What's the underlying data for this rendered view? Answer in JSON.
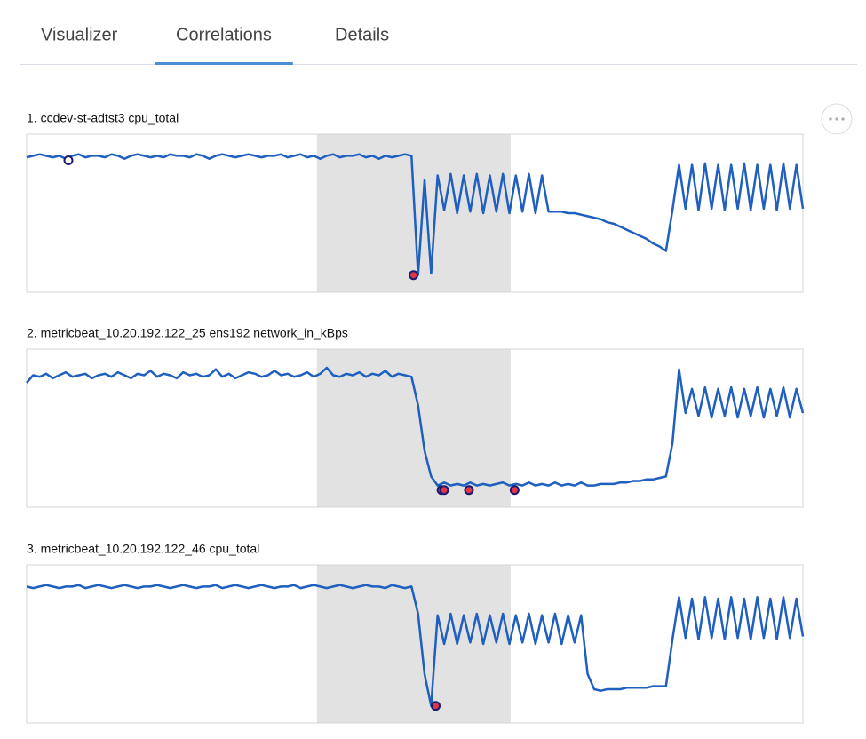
{
  "tabs": [
    "Visualizer",
    "Correlations",
    "Details"
  ],
  "active_tab": 1,
  "chart_data": [
    {
      "type": "line",
      "title": "1. ccdev-st-adtst3 cpu_total",
      "color": "#1e5fbf",
      "highlight_color": "#e2e2e2",
      "xlim": [
        0,
        119
      ],
      "ylim": [
        0,
        100
      ],
      "highlight": [
        44.5,
        74.2
      ],
      "values": [
        87,
        88,
        89,
        88,
        87,
        88,
        86,
        88,
        89,
        87,
        88,
        88,
        87,
        89,
        88,
        86,
        88,
        89,
        88,
        87,
        88,
        87,
        89,
        88,
        88,
        87,
        89,
        88,
        86,
        88,
        89,
        88,
        87,
        88,
        89,
        88,
        87,
        88,
        88,
        89,
        87,
        88,
        89,
        87,
        88,
        86,
        88,
        89,
        87,
        88,
        88,
        89,
        87,
        88,
        86,
        88,
        87,
        88,
        89,
        88,
        9,
        72,
        10,
        75,
        52,
        76,
        50,
        75,
        51,
        76,
        50,
        75,
        51,
        76,
        50,
        75,
        51,
        76,
        50,
        75,
        51,
        51,
        51,
        50,
        50,
        49,
        48,
        47,
        46,
        44,
        43,
        41,
        39,
        37,
        35,
        33,
        30,
        28,
        25,
        52,
        82,
        53,
        82,
        52,
        83,
        53,
        82,
        52,
        82,
        53,
        83,
        52,
        82,
        53,
        82,
        52,
        83,
        53,
        82,
        53
      ],
      "markers": {
        "x": [
          6.4,
          59.3
        ],
        "y": [
          85,
          9
        ],
        "fill": [
          "#ffffff",
          "#e0364a"
        ]
      }
    },
    {
      "type": "line",
      "title": "2. metricbeat_10.20.192.122_25 ens192 network_in_kBps",
      "color": "#1e5fbf",
      "highlight_color": "#e2e2e2",
      "xlim": [
        0,
        119
      ],
      "ylim": [
        0,
        100
      ],
      "highlight": [
        44.5,
        74.2
      ],
      "values": [
        80,
        85,
        84,
        86,
        83,
        85,
        87,
        84,
        85,
        86,
        83,
        85,
        86,
        84,
        87,
        85,
        83,
        86,
        85,
        88,
        84,
        86,
        85,
        83,
        87,
        85,
        86,
        84,
        85,
        89,
        84,
        86,
        83,
        85,
        87,
        86,
        84,
        85,
        88,
        85,
        86,
        84,
        85,
        87,
        84,
        86,
        90,
        85,
        84,
        86,
        85,
        87,
        84,
        86,
        85,
        88,
        84,
        86,
        85,
        84,
        65,
        35,
        18,
        12,
        14,
        12,
        13,
        12,
        14,
        12,
        13,
        12,
        13,
        14,
        12,
        13,
        12,
        14,
        12,
        13,
        12,
        14,
        12,
        13,
        12,
        14,
        12,
        12,
        13,
        13,
        13,
        14,
        14,
        15,
        15,
        16,
        16,
        17,
        18,
        40,
        89,
        60,
        76,
        58,
        77,
        57,
        76,
        58,
        77,
        57,
        76,
        58,
        77,
        57,
        76,
        58,
        77,
        57,
        76,
        60
      ],
      "markers": {
        "x": [
          63.6,
          64.0,
          67.8,
          74.8
        ],
        "y": [
          9,
          9,
          9,
          9
        ],
        "fill": [
          "#e0364a",
          "#e0364a",
          "#e0364a",
          "#e0364a"
        ]
      }
    },
    {
      "type": "line",
      "title": "3. metricbeat_10.20.192.122_46 cpu_total",
      "color": "#1e5fbf",
      "highlight_color": "#e2e2e2",
      "xlim": [
        0,
        119
      ],
      "ylim": [
        0,
        100
      ],
      "highlight": [
        44.5,
        74.2
      ],
      "values": [
        88,
        87,
        88,
        89,
        88,
        87,
        88,
        88,
        89,
        87,
        88,
        89,
        88,
        87,
        88,
        89,
        88,
        87,
        88,
        88,
        89,
        88,
        87,
        88,
        89,
        88,
        87,
        88,
        88,
        89,
        87,
        88,
        89,
        88,
        87,
        88,
        89,
        88,
        87,
        88,
        88,
        89,
        87,
        88,
        89,
        88,
        87,
        88,
        89,
        88,
        87,
        88,
        89,
        88,
        88,
        87,
        89,
        88,
        87,
        88,
        70,
        30,
        9,
        69,
        50,
        70,
        50,
        69,
        51,
        70,
        50,
        69,
        51,
        70,
        50,
        69,
        51,
        70,
        50,
        69,
        51,
        70,
        50,
        69,
        51,
        69,
        30,
        20,
        19,
        20,
        20,
        20,
        21,
        21,
        21,
        21,
        22,
        22,
        22,
        53,
        81,
        54,
        80,
        53,
        81,
        54,
        80,
        53,
        81,
        54,
        80,
        53,
        81,
        54,
        80,
        53,
        81,
        54,
        80,
        55
      ],
      "markers": {
        "x": [
          62.7
        ],
        "y": [
          9
        ],
        "fill": [
          "#e0364a"
        ]
      }
    }
  ]
}
